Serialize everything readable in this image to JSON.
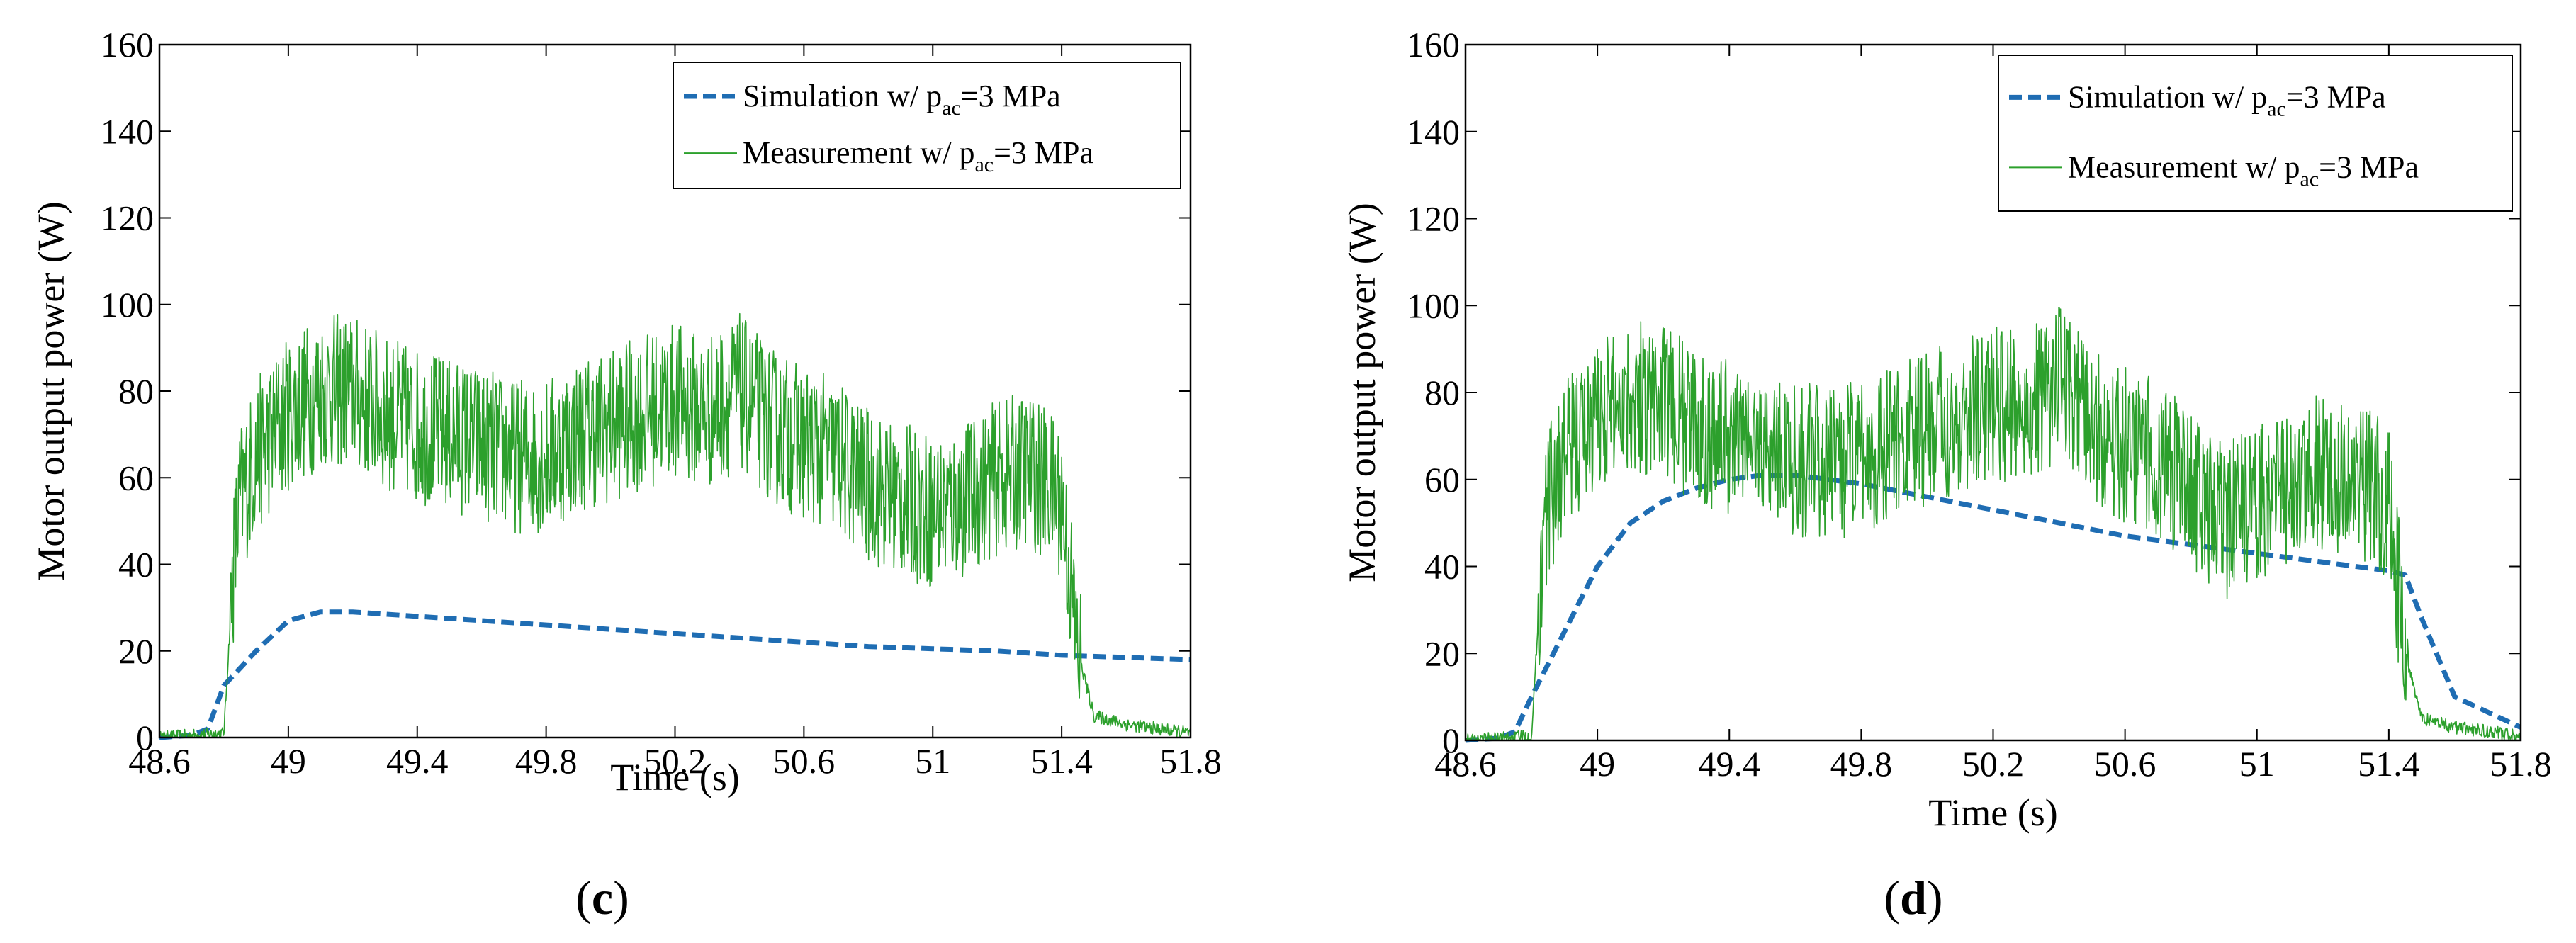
{
  "chart_data": [
    {
      "type": "line",
      "panel_label_open": "(",
      "panel_label_letter": "c",
      "panel_label_close": ")",
      "xlabel": "Time (s)",
      "ylabel": "Motor output power (W)",
      "xlim": [
        48.6,
        51.8
      ],
      "ylim": [
        0,
        160
      ],
      "xticks": [
        48.6,
        49,
        49.4,
        49.8,
        50.2,
        50.6,
        51,
        51.4,
        51.8
      ],
      "xtick_labels": [
        "48.6",
        "49",
        "49.4",
        "49.8",
        "50.2",
        "50.6",
        "51",
        "51.4",
        "51.8"
      ],
      "yticks": [
        0,
        20,
        40,
        60,
        80,
        100,
        120,
        140,
        160
      ],
      "ytick_labels": [
        "0",
        "20",
        "40",
        "60",
        "80",
        "100",
        "120",
        "140",
        "160"
      ],
      "grid": false,
      "legend_position": "top-right",
      "series": [
        {
          "legend_text": "Simulation w/ p",
          "legend_sub": "ac",
          "legend_suffix": "=3 MPa",
          "style": "dashed",
          "color": "#1f6db3",
          "x": [
            48.6,
            48.7,
            48.75,
            48.8,
            48.9,
            49.0,
            49.1,
            49.2,
            49.4,
            49.6,
            49.8,
            50.0,
            50.2,
            50.4,
            50.6,
            50.8,
            51.0,
            51.2,
            51.4,
            51.6,
            51.8
          ],
          "y": [
            0,
            0.5,
            2,
            12,
            20,
            27,
            29,
            29,
            28,
            27,
            26,
            25,
            24,
            23,
            22,
            21,
            20.5,
            20,
            19,
            18.5,
            18
          ]
        },
        {
          "legend_text": "Measurement w/ p",
          "legend_sub": "ac",
          "legend_suffix": "=3 MPa",
          "style": "solid",
          "color": "#2ca02c",
          "x": [
            48.6,
            48.8,
            48.83,
            48.85,
            48.9,
            49.0,
            49.1,
            49.2,
            49.3,
            49.4,
            49.5,
            49.6,
            49.7,
            49.8,
            49.9,
            50.0,
            50.1,
            50.2,
            50.3,
            50.4,
            50.5,
            50.6,
            50.7,
            50.8,
            50.9,
            51.0,
            51.1,
            51.2,
            51.3,
            51.4,
            51.45,
            51.5,
            51.6,
            51.7,
            51.8
          ],
          "y": [
            0,
            1,
            40,
            55,
            65,
            75,
            80,
            80,
            75,
            72,
            70,
            68,
            65,
            65,
            70,
            72,
            75,
            78,
            75,
            80,
            72,
            68,
            65,
            58,
            55,
            52,
            55,
            60,
            62,
            55,
            20,
            5,
            3,
            2,
            1
          ],
          "noise": 18
        }
      ]
    },
    {
      "type": "line",
      "panel_label_open": "(",
      "panel_label_letter": "d",
      "panel_label_close": ")",
      "xlabel": "Time (s)",
      "ylabel": "Motor output power (W)",
      "xlim": [
        48.6,
        51.8
      ],
      "ylim": [
        0,
        160
      ],
      "xticks": [
        48.6,
        49,
        49.4,
        49.8,
        50.2,
        50.6,
        51,
        51.4,
        51.8
      ],
      "xtick_labels": [
        "48.6",
        "49",
        "49.4",
        "49.8",
        "50.2",
        "50.6",
        "51",
        "51.4",
        "51.8"
      ],
      "yticks": [
        0,
        20,
        40,
        60,
        80,
        100,
        120,
        140,
        160
      ],
      "ytick_labels": [
        "0",
        "20",
        "40",
        "60",
        "80",
        "100",
        "120",
        "140",
        "160"
      ],
      "grid": false,
      "legend_position": "top-right",
      "series": [
        {
          "legend_text": "Simulation w/ p",
          "legend_sub": "ac",
          "legend_suffix": "=3 MPa",
          "style": "dashed",
          "color": "#1f6db3",
          "x": [
            48.6,
            48.7,
            48.75,
            48.8,
            48.9,
            49.0,
            49.1,
            49.2,
            49.3,
            49.4,
            49.5,
            49.6,
            49.8,
            50.0,
            50.2,
            50.4,
            50.6,
            50.8,
            51.0,
            51.2,
            51.4,
            51.45,
            51.5,
            51.6,
            51.8
          ],
          "y": [
            0,
            0.5,
            2,
            10,
            25,
            40,
            50,
            55,
            58,
            60,
            61,
            61,
            59,
            56,
            53,
            50,
            47,
            45,
            43,
            41,
            39,
            38,
            28,
            10,
            3
          ]
        },
        {
          "legend_text": "Measurement w/ p",
          "legend_sub": "ac",
          "legend_suffix": "=3 MPa",
          "style": "solid",
          "color": "#2ca02c",
          "x": [
            48.6,
            48.8,
            48.83,
            48.85,
            48.9,
            49.0,
            49.1,
            49.2,
            49.3,
            49.4,
            49.5,
            49.6,
            49.7,
            49.8,
            49.9,
            50.0,
            50.1,
            50.2,
            50.3,
            50.4,
            50.5,
            50.6,
            50.7,
            50.8,
            50.9,
            51.0,
            51.1,
            51.2,
            51.3,
            51.4,
            51.45,
            51.5,
            51.6,
            51.7,
            51.8
          ],
          "y": [
            0,
            1,
            40,
            55,
            65,
            75,
            80,
            78,
            72,
            70,
            68,
            65,
            63,
            65,
            68,
            72,
            74,
            78,
            76,
            82,
            72,
            68,
            65,
            58,
            50,
            55,
            58,
            62,
            60,
            55,
            20,
            5,
            3,
            2,
            1
          ],
          "noise": 18
        }
      ]
    }
  ]
}
